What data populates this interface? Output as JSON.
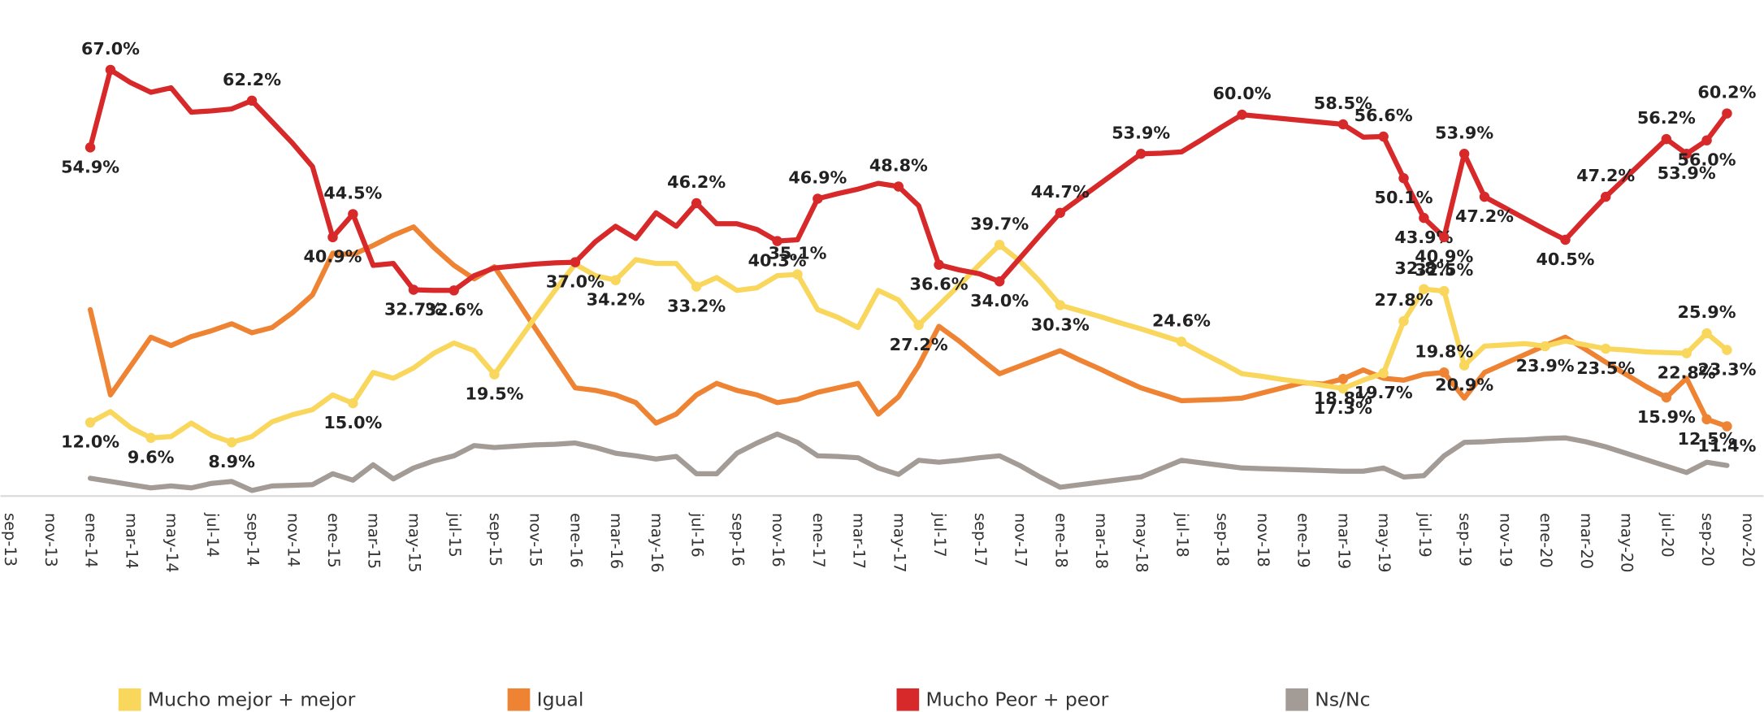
{
  "chart_data": {
    "type": "line",
    "categories": [
      "sep-13",
      null,
      "nov-13",
      null,
      "ene-14",
      null,
      "mar-14",
      null,
      "may-14",
      null,
      "jul-14",
      null,
      "sep-14",
      null,
      "nov-14",
      null,
      "ene-15",
      null,
      "mar-15",
      null,
      "may-15",
      null,
      "jul-15",
      null,
      "sep-15",
      null,
      "nov-15",
      null,
      "ene-16",
      null,
      "mar-16",
      null,
      "may-16",
      null,
      "jul-16",
      null,
      "sep-16",
      null,
      "nov-16",
      null,
      "ene-17",
      null,
      "mar-17",
      null,
      "may-17",
      null,
      "jul-17",
      null,
      "sep-17",
      null,
      "nov-17",
      null,
      "ene-18",
      null,
      "mar-18",
      null,
      "may-18",
      null,
      "jul-18",
      null,
      "sep-18",
      null,
      "nov-18",
      null,
      "ene-19",
      null,
      "mar-19",
      null,
      "may-19",
      null,
      "jul-19",
      null,
      "sep-19",
      null,
      "nov-19",
      null,
      "ene-20",
      null,
      "mar-20",
      null,
      "may-20",
      null,
      "jul-20",
      null,
      "sep-20",
      null,
      "nov-20"
    ],
    "series": [
      {
        "name": "Mucho mejor + mejor",
        "color": "#f9d65c",
        "values": [
          null,
          null,
          null,
          null,
          12.0,
          13.7,
          11.2,
          9.6,
          9.8,
          11.9,
          10.0,
          8.9,
          9.8,
          12.1,
          13.2,
          14.0,
          16.3,
          15.0,
          19.8,
          18.9,
          20.5,
          22.8,
          24.4,
          23.2,
          19.5,
          23.9,
          28.3,
          32.6,
          36.7,
          34.9,
          34.2,
          37.4,
          36.8,
          36.8,
          33.2,
          34.6,
          32.6,
          33.0,
          34.9,
          35.1,
          29.6,
          28.4,
          26.8,
          32.6,
          31.1,
          27.2,
          30.3,
          33.4,
          36.6,
          39.7,
          37.2,
          34.0,
          30.3,
          29.4,
          28.5,
          27.5,
          26.6,
          25.6,
          24.6,
          22.9,
          21.3,
          19.6,
          19.2,
          18.7,
          18.3,
          17.8,
          17.3,
          18.6,
          19.7,
          27.8,
          32.8,
          32.5,
          20.9,
          23.9,
          24.1,
          24.3,
          23.9,
          24.7,
          24.1,
          23.5,
          23.3,
          23.0,
          22.9,
          22.8,
          25.9,
          23.3,
          null
        ],
        "value_labels": [
          null,
          null,
          null,
          null,
          "12.0%",
          null,
          null,
          "9.6%",
          null,
          null,
          null,
          "8.9%",
          null,
          null,
          null,
          null,
          null,
          "15.0%",
          null,
          null,
          null,
          null,
          null,
          null,
          "19.5%",
          null,
          null,
          null,
          null,
          null,
          "34.2%",
          null,
          null,
          null,
          "33.2%",
          null,
          null,
          null,
          null,
          "35.1%",
          null,
          null,
          null,
          null,
          null,
          "27.2%",
          null,
          null,
          null,
          "39.7%",
          null,
          null,
          "30.3%",
          null,
          null,
          null,
          null,
          null,
          "24.6%",
          null,
          null,
          null,
          null,
          null,
          null,
          null,
          "17.3%",
          null,
          "19.7%",
          "27.8%",
          "32.8%",
          "32.5%",
          "20.9%",
          null,
          null,
          null,
          "23.9%",
          null,
          null,
          "23.5%",
          null,
          null,
          null,
          "22.8%",
          "25.9%",
          "23.3%",
          null
        ]
      },
      {
        "name": "Igual",
        "color": "#ee8433",
        "values": [
          null,
          null,
          null,
          null,
          29.6,
          16.3,
          20.8,
          25.3,
          24.0,
          25.4,
          26.3,
          27.4,
          26.0,
          26.8,
          29.1,
          31.9,
          38.4,
          38.2,
          39.6,
          41.2,
          42.5,
          39.3,
          36.5,
          34.4,
          36.3,
          31.6,
          26.8,
          22.1,
          17.4,
          17.0,
          16.3,
          15.1,
          11.9,
          13.3,
          16.3,
          18.1,
          17.0,
          16.3,
          15.1,
          15.6,
          16.7,
          17.4,
          18.1,
          13.3,
          16.0,
          20.9,
          27.0,
          24.7,
          22.1,
          19.6,
          20.8,
          22.0,
          23.2,
          21.7,
          20.3,
          18.8,
          17.4,
          16.4,
          15.4,
          15.5,
          15.6,
          15.8,
          16.6,
          17.4,
          18.2,
          18.0,
          18.8,
          20.2,
          18.9,
          18.6,
          19.5,
          19.8,
          15.8,
          19.8,
          21.2,
          22.6,
          24.0,
          25.3,
          23.4,
          21.4,
          19.5,
          17.6,
          15.9,
          18.9,
          12.5,
          11.4,
          null
        ],
        "value_labels": [
          null,
          null,
          null,
          null,
          null,
          null,
          null,
          null,
          null,
          null,
          null,
          null,
          null,
          null,
          null,
          null,
          null,
          null,
          null,
          null,
          null,
          null,
          null,
          null,
          null,
          null,
          null,
          null,
          null,
          null,
          null,
          null,
          null,
          null,
          null,
          null,
          null,
          null,
          null,
          null,
          null,
          null,
          null,
          null,
          null,
          null,
          null,
          null,
          null,
          null,
          null,
          null,
          null,
          null,
          null,
          null,
          null,
          null,
          null,
          null,
          null,
          null,
          null,
          null,
          null,
          null,
          "18.8%",
          null,
          null,
          null,
          null,
          "19.8%",
          null,
          null,
          null,
          null,
          null,
          null,
          null,
          null,
          null,
          null,
          "15.9%",
          null,
          "12.5%",
          "11.4%",
          null
        ]
      },
      {
        "name": "Mucho Peor + peor",
        "color": "#d7282a",
        "values": [
          null,
          null,
          null,
          null,
          54.9,
          67.0,
          65.0,
          63.5,
          64.2,
          60.4,
          60.6,
          60.9,
          62.2,
          58.9,
          55.6,
          51.9,
          40.9,
          44.5,
          36.5,
          36.8,
          32.7,
          32.6,
          32.6,
          34.9,
          36.1,
          36.4,
          36.7,
          36.9,
          37.0,
          40.2,
          42.6,
          40.7,
          44.7,
          42.6,
          46.2,
          43.0,
          43.0,
          42.1,
          40.3,
          40.5,
          46.9,
          47.7,
          48.4,
          49.3,
          48.8,
          45.8,
          36.6,
          35.8,
          35.2,
          34.0,
          37.6,
          41.2,
          44.7,
          47.0,
          49.3,
          51.6,
          53.9,
          54.0,
          54.2,
          56.1,
          58.1,
          60.0,
          59.7,
          59.4,
          59.1,
          58.8,
          58.5,
          56.5,
          56.6,
          50.1,
          43.9,
          40.9,
          53.9,
          47.2,
          45.5,
          43.8,
          42.1,
          40.5,
          43.9,
          47.2,
          50.2,
          53.2,
          56.2,
          53.9,
          56.0,
          60.2,
          null
        ],
        "value_labels": [
          null,
          null,
          null,
          null,
          "54.9%",
          "67.0%",
          null,
          null,
          null,
          null,
          null,
          null,
          "62.2%",
          null,
          null,
          null,
          "40.9%",
          "44.5%",
          null,
          null,
          "32.7%",
          null,
          "32.6%",
          null,
          null,
          null,
          null,
          null,
          "37.0%",
          null,
          null,
          null,
          null,
          null,
          "46.2%",
          null,
          null,
          null,
          "40.3%",
          null,
          "46.9%",
          null,
          null,
          null,
          "48.8%",
          null,
          "36.6%",
          null,
          null,
          "34.0%",
          null,
          null,
          "44.7%",
          null,
          null,
          null,
          "53.9%",
          null,
          null,
          null,
          null,
          "60.0%",
          null,
          null,
          null,
          null,
          "58.5%",
          null,
          "56.6%",
          "50.1%",
          "43.9%",
          "40.9%",
          "53.9%",
          "47.2%",
          null,
          null,
          null,
          "40.5%",
          null,
          "47.2%",
          null,
          null,
          "56.2%",
          "53.9%",
          "56.0%",
          "60.2%",
          null
        ]
      },
      {
        "name": "Ns/Nc",
        "color": "#a39b96",
        "values": [
          null,
          null,
          null,
          null,
          3.3,
          2.8,
          2.3,
          1.8,
          2.1,
          1.8,
          2.5,
          2.8,
          1.4,
          2.1,
          2.2,
          2.3,
          4.0,
          3.0,
          5.4,
          3.2,
          4.9,
          6.0,
          6.8,
          8.4,
          8.1,
          8.3,
          8.5,
          8.6,
          8.8,
          8.1,
          7.2,
          6.8,
          6.3,
          6.7,
          4.0,
          4.0,
          7.2,
          8.8,
          10.2,
          8.9,
          6.8,
          6.7,
          6.5,
          4.9,
          3.9,
          6.1,
          5.8,
          6.1,
          6.5,
          6.8,
          5.3,
          3.5,
          1.9,
          2.3,
          2.7,
          3.1,
          3.5,
          4.8,
          6.1,
          5.7,
          5.3,
          4.9,
          4.8,
          4.7,
          4.6,
          4.5,
          4.4,
          4.4,
          4.9,
          3.5,
          3.7,
          6.8,
          8.9,
          9.0,
          9.2,
          9.3,
          9.5,
          9.6,
          9.0,
          8.2,
          7.2,
          6.2,
          5.2,
          4.2,
          5.8,
          5.3,
          null
        ]
      }
    ],
    "ylim": [
      0,
      75
    ],
    "grid": false,
    "legend": "bottom"
  }
}
